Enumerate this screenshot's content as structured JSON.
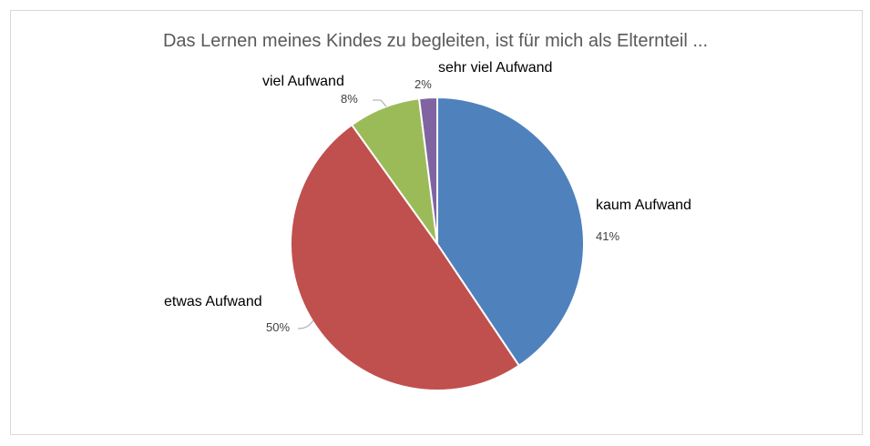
{
  "chart_data": {
    "type": "pie",
    "title": "Das Lernen meines Kindes zu begleiten, ist für mich als Elternteil ...",
    "categories": [
      "kaum Aufwand",
      "etwas Aufwand",
      "viel Aufwand",
      "sehr viel Aufwand"
    ],
    "values": [
      41,
      50,
      8,
      2
    ],
    "value_labels": [
      "41%",
      "50%",
      "8%",
      "2%"
    ],
    "colors": [
      "#4f81bd",
      "#c0504d",
      "#9bbb59",
      "#8064a2"
    ],
    "start_angle_deg": 0,
    "direction": "clockwise",
    "legend": "none"
  }
}
